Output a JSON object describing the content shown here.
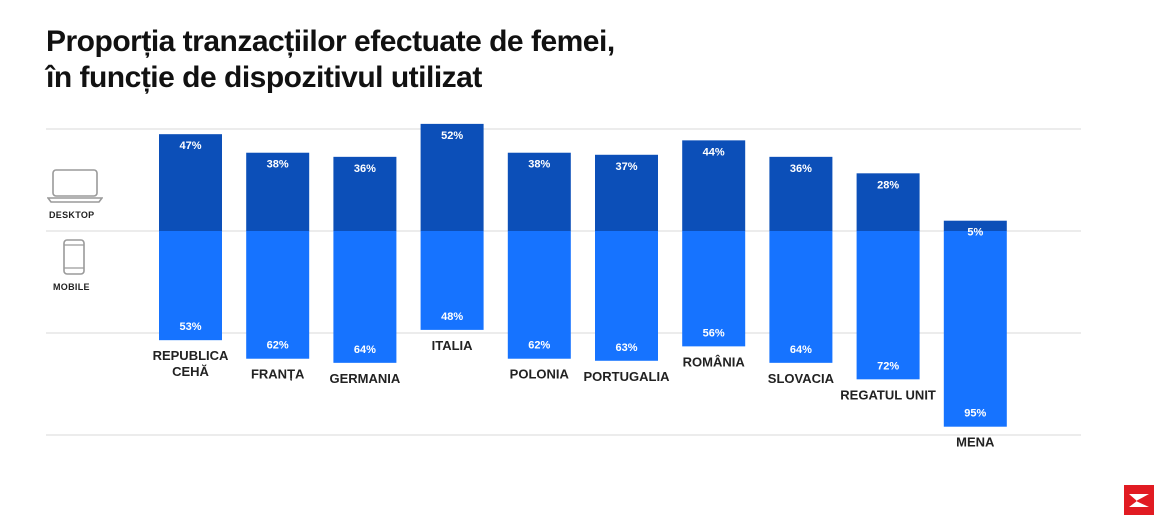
{
  "title_lines": [
    "Proporția tranzacțiilor efectuate de femei,",
    "în funcție de dispozitivul utilizat"
  ],
  "legend": {
    "desktop": "DESKTOP",
    "mobile": "MOBILE"
  },
  "colors": {
    "desktop": "#0c4fb8",
    "mobile": "#1673ff",
    "grid": "#d8d8d8",
    "text": "#222222",
    "logo": "#e11b22"
  },
  "icons": {
    "desktop": "laptop-icon",
    "mobile": "smartphone-icon",
    "logo": "brand-logo-icon"
  },
  "chart_data": {
    "type": "bar",
    "stacked": true,
    "categories": [
      "REPUBLICA CEHĂ",
      "FRANȚA",
      "GERMANIA",
      "ITALIA",
      "POLONIA",
      "PORTUGALIA",
      "ROMÂNIA",
      "SLOVACIA",
      "REGATUL UNIT",
      "MENA"
    ],
    "category_lines": [
      [
        "REPUBLICA",
        "CEHĂ"
      ],
      [
        "FRANȚA"
      ],
      [
        "GERMANIA"
      ],
      [
        "ITALIA"
      ],
      [
        "POLONIA"
      ],
      [
        "PORTUGALIA"
      ],
      [
        "ROMÂNIA"
      ],
      [
        "SLOVACIA"
      ],
      [
        "REGATUL UNIT"
      ],
      [
        "MENA"
      ]
    ],
    "series": [
      {
        "name": "DESKTOP",
        "values": [
          47,
          38,
          36,
          52,
          38,
          37,
          44,
          36,
          28,
          5
        ]
      },
      {
        "name": "MOBILE",
        "values": [
          53,
          62,
          64,
          48,
          62,
          63,
          56,
          64,
          72,
          95
        ]
      }
    ],
    "value_suffix": "%",
    "grid": true,
    "legend_position": "left"
  }
}
